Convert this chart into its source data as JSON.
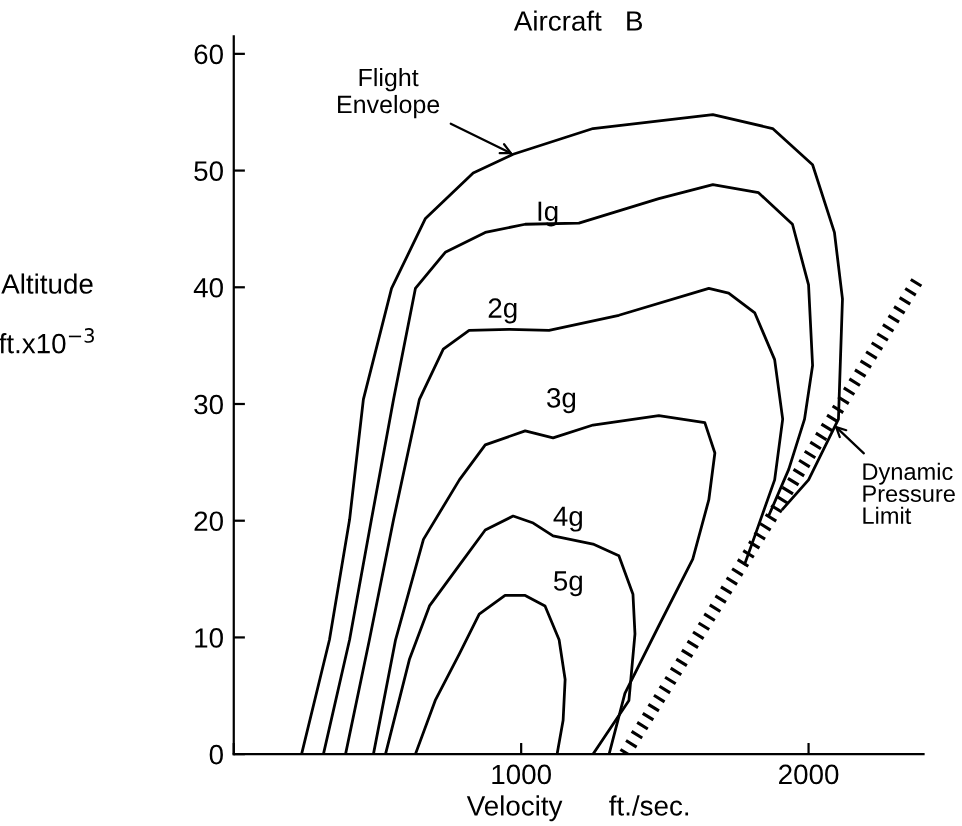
{
  "chart_data": {
    "type": "line",
    "title": "Aircraft   B",
    "xlabel": "Velocity      ft./sec.",
    "ylabel": "Altitude\n\nft.x10$^{−3}$",
    "xlim": [
      0,
      2400
    ],
    "xticks": [
      {
        "value": 0,
        "label": null
      },
      1000,
      2000
    ],
    "ylim": [
      0,
      61.5
    ],
    "yticks": [
      0,
      10,
      20,
      30,
      40,
      50,
      60
    ],
    "grid": false,
    "legend": false,
    "marker": "none",
    "series": [
      {
        "color": "#000000",
        "line_style": "solid",
        "x": [
          236,
          333,
          403,
          451,
          549,
          667,
          833,
          972,
          1250,
          1667,
          1875,
          2014,
          2090,
          2118,
          2104,
          2000,
          1910
        ],
        "values": [
          0,
          9.8,
          20.1,
          30.4,
          39.9,
          45.9,
          49.8,
          51.4,
          53.6,
          54.8,
          53.6,
          50.5,
          44.7,
          39.0,
          28.7,
          23.5,
          21.0
        ]
      },
      {
        "color": "#000000",
        "line_style": "solid",
        "x": [
          312,
          403,
          479,
          556,
          632,
          736,
          875,
          1014,
          1201,
          1479,
          1667,
          1826,
          1944,
          2000,
          2014,
          1986,
          1931,
          1861
        ],
        "values": [
          0,
          9.8,
          20.1,
          30.4,
          39.9,
          43.0,
          44.7,
          45.4,
          45.5,
          47.6,
          48.8,
          48.1,
          45.4,
          40.2,
          33.3,
          28.7,
          24.4,
          20.4
        ]
      },
      {
        "color": "#000000",
        "line_style": "solid",
        "x": [
          389,
          472,
          556,
          646,
          729,
          819,
          958,
          1097,
          1340,
          1653,
          1722,
          1813,
          1882,
          1910,
          1882,
          1813,
          1778
        ],
        "values": [
          0,
          9.8,
          20.1,
          30.4,
          34.7,
          36.3,
          36.4,
          36.3,
          37.6,
          39.9,
          39.5,
          37.8,
          33.8,
          28.7,
          23.5,
          18.7,
          16.3
        ]
      },
      {
        "color": "#000000",
        "line_style": "solid",
        "x": [
          486,
          563,
          660,
          785,
          875,
          1014,
          1111,
          1250,
          1479,
          1639,
          1674,
          1653,
          1597,
          1479,
          1361,
          1306
        ],
        "values": [
          0,
          9.8,
          18.4,
          23.5,
          26.5,
          27.7,
          27.1,
          28.2,
          29.0,
          28.4,
          25.8,
          21.8,
          16.7,
          11.0,
          5.2,
          0
        ]
      },
      {
        "color": "#000000",
        "line_style": "solid",
        "x": [
          528,
          611,
          681,
          785,
          875,
          972,
          1042,
          1111,
          1250,
          1340,
          1389,
          1396,
          1375,
          1250
        ],
        "values": [
          0,
          8.1,
          12.7,
          16.2,
          19.2,
          20.4,
          19.8,
          18.7,
          18.0,
          17.0,
          13.7,
          10.3,
          4.6,
          0
        ]
      },
      {
        "color": "#000000",
        "line_style": "solid",
        "x": [
          632,
          701,
          785,
          854,
          944,
          1014,
          1083,
          1132,
          1153,
          1146,
          1125
        ],
        "values": [
          0,
          4.6,
          8.6,
          12.0,
          13.6,
          13.6,
          12.7,
          9.8,
          6.4,
          2.9,
          0
        ]
      },
      {
        "color": "#000000",
        "line_style": "dotted",
        "x": [
          1361,
          2382
        ],
        "values": [
          0,
          40.7
        ]
      }
    ],
    "annotations": [
      {
        "text": "Flight\nEnvelope",
        "x": 972,
        "y": 51.4
      },
      "Ig",
      "2g",
      "3g",
      "4g",
      "5g",
      "Dynamic\nPressure\nLimit"
    ]
  }
}
